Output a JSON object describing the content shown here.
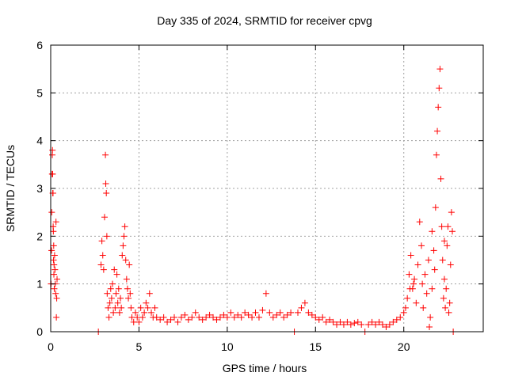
{
  "chart_data": {
    "type": "scatter",
    "title": "Day 335 of 2024, SRMTID for receiver cpvg",
    "xlabel": "GPS time / hours",
    "ylabel": "SRMTID / TECUs",
    "xlim": [
      0,
      24.5
    ],
    "ylim": [
      0,
      6
    ],
    "x_ticks": [
      0,
      5,
      10,
      15,
      20
    ],
    "y_ticks": [
      0,
      1,
      2,
      3,
      4,
      5,
      6
    ],
    "x_tick_labels": [
      "0",
      "5",
      "10",
      "15",
      "20"
    ],
    "y_tick_labels": [
      "0",
      "1",
      "2",
      "3",
      "4",
      "5",
      "6"
    ],
    "grid": true,
    "marker": "plus",
    "series": [
      {
        "name": "SRMTID",
        "color": "#ff0000",
        "points": [
          [
            0.05,
            1.7
          ],
          [
            0.08,
            3.3
          ],
          [
            0.1,
            3.8
          ],
          [
            0.12,
            2.9
          ],
          [
            0.14,
            2.2
          ],
          [
            0.16,
            1.5
          ],
          [
            0.18,
            1.2
          ],
          [
            0.2,
            0.9
          ],
          [
            0.22,
            1.6
          ],
          [
            0.24,
            1.3
          ],
          [
            0.26,
            1.0
          ],
          [
            0.28,
            0.8
          ],
          [
            0.3,
            2.3
          ],
          [
            0.32,
            0.3
          ],
          [
            0.34,
            0.7
          ],
          [
            0.36,
            1.1
          ],
          [
            0.02,
            1.0
          ],
          [
            0.06,
            2.5
          ],
          [
            0.09,
            3.7
          ],
          [
            0.11,
            3.3
          ],
          [
            0.13,
            2.9
          ],
          [
            0.15,
            2.1
          ],
          [
            0.17,
            1.8
          ],
          [
            0.19,
            1.4
          ],
          [
            2.7,
            0.0
          ],
          [
            2.85,
            1.4
          ],
          [
            2.9,
            1.9
          ],
          [
            2.95,
            1.6
          ],
          [
            3.0,
            1.3
          ],
          [
            3.05,
            2.4
          ],
          [
            3.1,
            3.7
          ],
          [
            3.12,
            3.1
          ],
          [
            3.15,
            2.9
          ],
          [
            3.18,
            2.0
          ],
          [
            3.2,
            0.8
          ],
          [
            3.25,
            0.5
          ],
          [
            3.3,
            0.3
          ],
          [
            3.35,
            0.6
          ],
          [
            3.4,
            0.9
          ],
          [
            3.45,
            0.7
          ],
          [
            3.5,
            1.0
          ],
          [
            3.55,
            0.4
          ],
          [
            3.6,
            1.3
          ],
          [
            3.65,
            0.5
          ],
          [
            3.7,
            0.8
          ],
          [
            3.75,
            1.2
          ],
          [
            3.8,
            0.6
          ],
          [
            3.85,
            0.9
          ],
          [
            3.9,
            0.4
          ],
          [
            3.95,
            0.7
          ],
          [
            4.0,
            0.5
          ],
          [
            4.05,
            1.6
          ],
          [
            4.1,
            1.8
          ],
          [
            4.15,
            2.0
          ],
          [
            4.2,
            2.2
          ],
          [
            4.25,
            1.5
          ],
          [
            4.3,
            1.1
          ],
          [
            4.35,
            0.9
          ],
          [
            4.4,
            0.7
          ],
          [
            4.45,
            1.4
          ],
          [
            4.5,
            0.8
          ],
          [
            4.55,
            0.5
          ],
          [
            4.6,
            0.3
          ],
          [
            4.7,
            0.2
          ],
          [
            4.8,
            0.4
          ],
          [
            4.9,
            0.3
          ],
          [
            5.0,
            0.2
          ],
          [
            5.1,
            0.5
          ],
          [
            5.2,
            0.3
          ],
          [
            5.3,
            0.4
          ],
          [
            5.4,
            0.6
          ],
          [
            5.5,
            0.5
          ],
          [
            5.6,
            0.8
          ],
          [
            5.7,
            0.4
          ],
          [
            5.8,
            0.3
          ],
          [
            5.9,
            0.5
          ],
          [
            6.0,
            0.3
          ],
          [
            6.2,
            0.25
          ],
          [
            6.4,
            0.3
          ],
          [
            6.6,
            0.2
          ],
          [
            6.8,
            0.25
          ],
          [
            7.0,
            0.3
          ],
          [
            7.2,
            0.2
          ],
          [
            7.4,
            0.3
          ],
          [
            7.6,
            0.35
          ],
          [
            7.8,
            0.25
          ],
          [
            8.0,
            0.3
          ],
          [
            8.2,
            0.4
          ],
          [
            8.4,
            0.3
          ],
          [
            8.6,
            0.25
          ],
          [
            8.8,
            0.3
          ],
          [
            9.0,
            0.35
          ],
          [
            9.2,
            0.3
          ],
          [
            9.4,
            0.25
          ],
          [
            9.6,
            0.3
          ],
          [
            9.8,
            0.35
          ],
          [
            10.0,
            0.3
          ],
          [
            10.2,
            0.4
          ],
          [
            10.4,
            0.3
          ],
          [
            10.6,
            0.35
          ],
          [
            10.8,
            0.3
          ],
          [
            11.0,
            0.4
          ],
          [
            11.2,
            0.35
          ],
          [
            11.4,
            0.3
          ],
          [
            11.6,
            0.4
          ],
          [
            11.8,
            0.3
          ],
          [
            12.0,
            0.45
          ],
          [
            12.2,
            0.8
          ],
          [
            12.4,
            0.4
          ],
          [
            12.6,
            0.3
          ],
          [
            12.8,
            0.35
          ],
          [
            13.0,
            0.4
          ],
          [
            13.2,
            0.3
          ],
          [
            13.4,
            0.35
          ],
          [
            13.6,
            0.4
          ],
          [
            13.8,
            0.0
          ],
          [
            14.0,
            0.4
          ],
          [
            14.2,
            0.5
          ],
          [
            14.4,
            0.6
          ],
          [
            14.6,
            0.4
          ],
          [
            14.8,
            0.35
          ],
          [
            15.0,
            0.3
          ],
          [
            15.2,
            0.25
          ],
          [
            15.4,
            0.3
          ],
          [
            15.6,
            0.2
          ],
          [
            15.8,
            0.25
          ],
          [
            16.0,
            0.2
          ],
          [
            16.2,
            0.15
          ],
          [
            16.4,
            0.2
          ],
          [
            16.6,
            0.15
          ],
          [
            16.8,
            0.2
          ],
          [
            17.0,
            0.15
          ],
          [
            17.2,
            0.18
          ],
          [
            17.4,
            0.2
          ],
          [
            17.6,
            0.15
          ],
          [
            17.8,
            0.0
          ],
          [
            18.0,
            0.15
          ],
          [
            18.2,
            0.2
          ],
          [
            18.4,
            0.15
          ],
          [
            18.6,
            0.2
          ],
          [
            18.8,
            0.15
          ],
          [
            19.0,
            0.1
          ],
          [
            19.2,
            0.15
          ],
          [
            19.4,
            0.2
          ],
          [
            19.6,
            0.25
          ],
          [
            19.8,
            0.3
          ],
          [
            20.0,
            0.4
          ],
          [
            20.1,
            0.5
          ],
          [
            20.2,
            0.7
          ],
          [
            20.3,
            1.2
          ],
          [
            20.4,
            1.6
          ],
          [
            20.5,
            0.9
          ],
          [
            20.6,
            1.1
          ],
          [
            20.7,
            0.6
          ],
          [
            20.8,
            1.4
          ],
          [
            20.9,
            2.3
          ],
          [
            21.0,
            1.8
          ],
          [
            21.1,
            0.5
          ],
          [
            21.2,
            1.2
          ],
          [
            21.3,
            0.8
          ],
          [
            21.4,
            1.5
          ],
          [
            21.5,
            0.3
          ],
          [
            21.6,
            0.9
          ],
          [
            21.7,
            1.7
          ],
          [
            21.8,
            2.6
          ],
          [
            21.85,
            3.7
          ],
          [
            21.9,
            4.2
          ],
          [
            21.95,
            4.7
          ],
          [
            22.0,
            5.1
          ],
          [
            22.05,
            5.5
          ],
          [
            22.1,
            3.2
          ],
          [
            22.15,
            2.2
          ],
          [
            22.2,
            1.5
          ],
          [
            22.25,
            0.7
          ],
          [
            22.3,
            1.1
          ],
          [
            22.35,
            0.5
          ],
          [
            22.4,
            0.9
          ],
          [
            22.45,
            1.8
          ],
          [
            22.5,
            2.2
          ],
          [
            22.55,
            0.4
          ],
          [
            22.6,
            0.6
          ],
          [
            22.65,
            1.4
          ],
          [
            22.7,
            2.5
          ],
          [
            22.75,
            2.1
          ],
          [
            22.8,
            0.0
          ],
          [
            21.6,
            2.1
          ],
          [
            21.75,
            1.3
          ],
          [
            22.3,
            1.9
          ],
          [
            20.35,
            0.9
          ],
          [
            20.55,
            1.0
          ],
          [
            21.05,
            1.0
          ],
          [
            21.45,
            0.1
          ]
        ]
      }
    ]
  }
}
